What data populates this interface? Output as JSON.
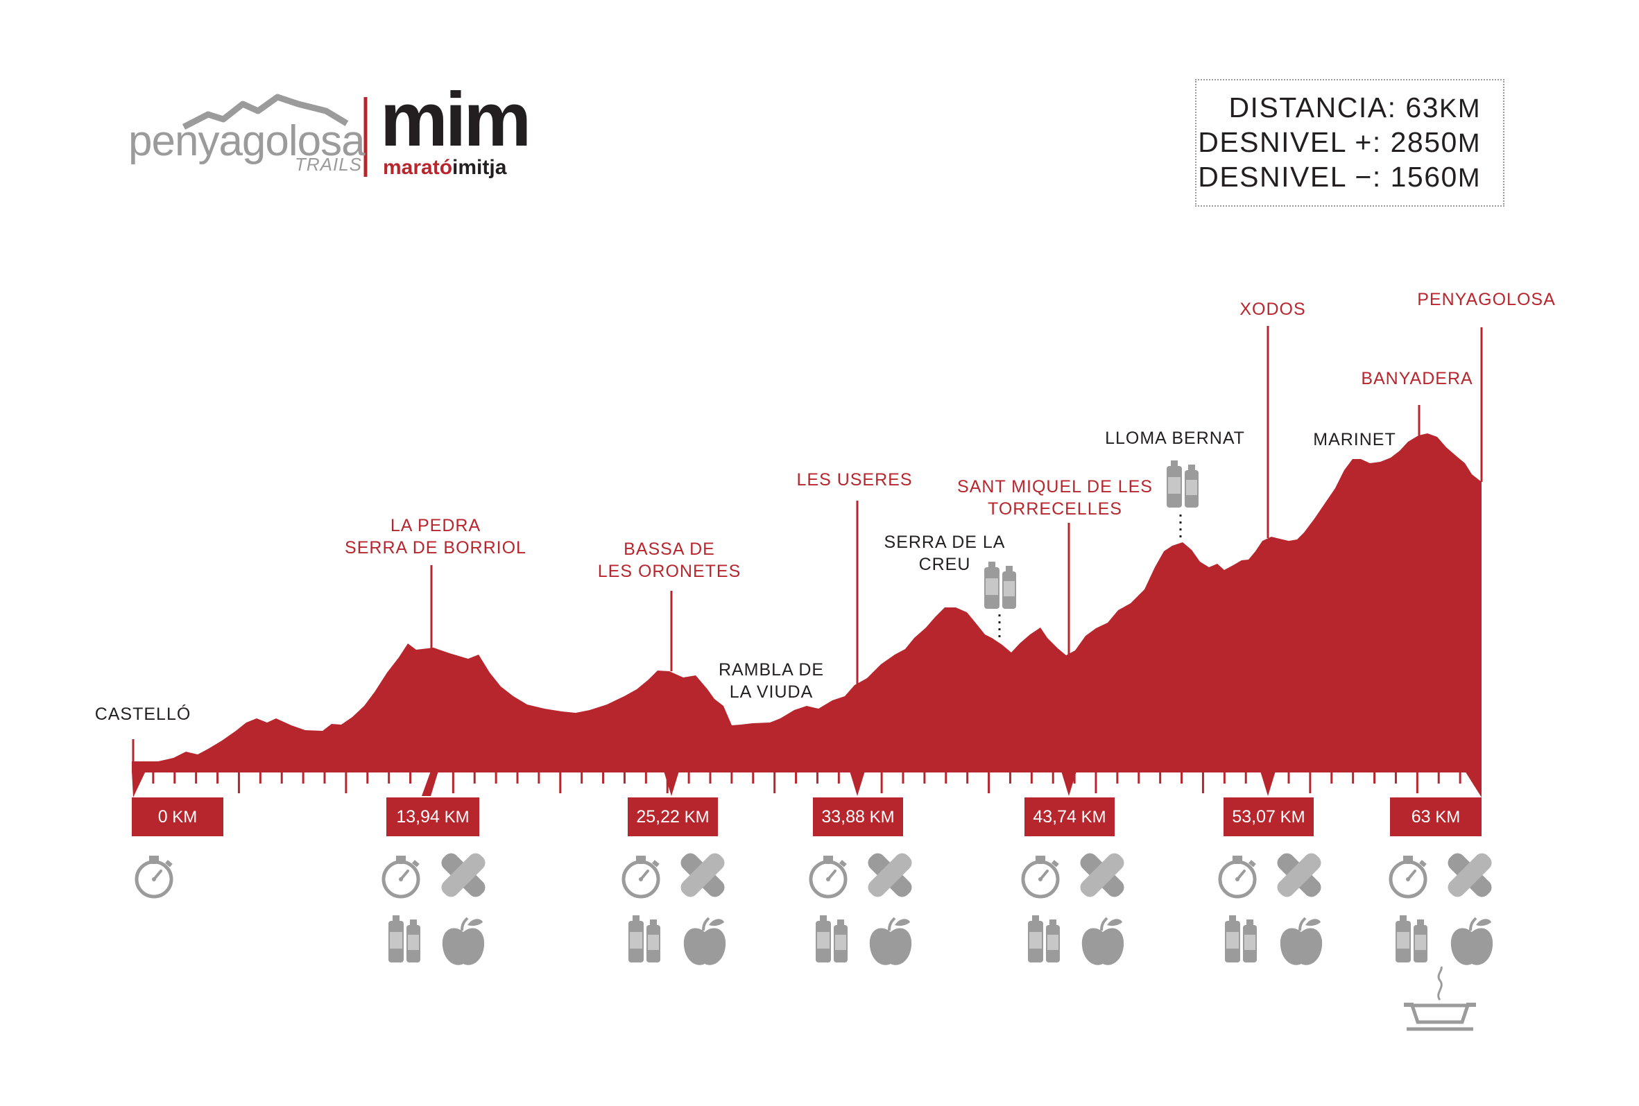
{
  "logo": {
    "brand": "penyagolosa",
    "brand_sub": "TRAILS",
    "race": "mim",
    "race_sub_a": "marató",
    "race_sub_b": "imitja"
  },
  "stats": {
    "distance_label": "DISTANCIA: ",
    "distance_value": "63",
    "distance_unit": "KM",
    "gain_label": "DESNIVEL +: ",
    "gain_value": "2850",
    "gain_unit": "M",
    "loss_label": "DESNIVEL −: ",
    "loss_value": "1560",
    "loss_unit": "M"
  },
  "colors": {
    "profile": "#b8262d",
    "icon": "#9b9b9b",
    "text": "#231f20"
  },
  "places": [
    {
      "id": "castello",
      "lines": [
        "CASTELLÓ"
      ],
      "color": "dark"
    },
    {
      "id": "la-pedra",
      "lines": [
        "LA PEDRA",
        "SERRA DE BORRIOL"
      ],
      "color": "red"
    },
    {
      "id": "bassa",
      "lines": [
        "BASSA DE",
        "LES ORONETES"
      ],
      "color": "red"
    },
    {
      "id": "rambla",
      "lines": [
        "RAMBLA DE",
        "LA VIUDA"
      ],
      "color": "dark"
    },
    {
      "id": "les-useres",
      "lines": [
        "LES USERES"
      ],
      "color": "red"
    },
    {
      "id": "serra-creu",
      "lines": [
        "SERRA DE LA",
        "CREU"
      ],
      "color": "dark"
    },
    {
      "id": "sant-miquel",
      "lines": [
        "SANT MIQUEL DE LES",
        "TORRECELLES"
      ],
      "color": "red"
    },
    {
      "id": "lloma-bernat",
      "lines": [
        "LLOMA BERNAT"
      ],
      "color": "dark"
    },
    {
      "id": "xodos",
      "lines": [
        "XODOS"
      ],
      "color": "red"
    },
    {
      "id": "marinet",
      "lines": [
        "MARINET"
      ],
      "color": "dark"
    },
    {
      "id": "banyadera",
      "lines": [
        "BANYADERA"
      ],
      "color": "red"
    },
    {
      "id": "penyagolosa",
      "lines": [
        "PENYAGOLOSA"
      ],
      "color": "red"
    }
  ],
  "checkpoints": [
    {
      "km": "0",
      "unit": " KM",
      "services": [
        "timing"
      ]
    },
    {
      "km": "13,94",
      "unit": " KM",
      "services": [
        "timing",
        "first-aid",
        "water",
        "food"
      ]
    },
    {
      "km": "25,22",
      "unit": " KM",
      "services": [
        "timing",
        "first-aid",
        "water",
        "food"
      ]
    },
    {
      "km": "33,88",
      "unit": " KM",
      "services": [
        "timing",
        "first-aid",
        "water",
        "food"
      ]
    },
    {
      "km": "43,74",
      "unit": " KM",
      "services": [
        "timing",
        "first-aid",
        "water",
        "food"
      ]
    },
    {
      "km": "53,07",
      "unit": " KM",
      "services": [
        "timing",
        "first-aid",
        "water",
        "food"
      ]
    },
    {
      "km": "63",
      "unit": " KM",
      "services": [
        "timing",
        "first-aid",
        "water",
        "food",
        "hot-meal"
      ]
    }
  ],
  "water_only_points": [
    "serra-creu",
    "lloma-bernat"
  ]
}
